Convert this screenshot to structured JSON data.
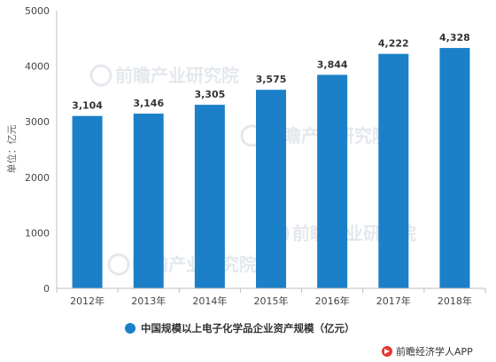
{
  "chart_data": {
    "type": "bar",
    "categories": [
      "2012年",
      "2013年",
      "2014年",
      "2015年",
      "2016年",
      "2017年",
      "2018年"
    ],
    "values": [
      3104,
      3146,
      3305,
      3575,
      3844,
      4222,
      4328
    ],
    "value_labels": [
      "3,104",
      "3,146",
      "3,305",
      "3,575",
      "3,844",
      "4,222",
      "4,328"
    ],
    "title": "",
    "xlabel": "",
    "ylabel": "单位：亿元",
    "ylim": [
      0,
      5000
    ],
    "yticks": [
      0,
      1000,
      2000,
      3000,
      4000,
      5000
    ],
    "grid": false,
    "legend": {
      "position": "bottom",
      "entries": [
        "中国规模以上电子化学品企业资产规模（亿元）"
      ]
    },
    "series": [
      {
        "name": "中国规模以上电子化学品企业资产规模（亿元）",
        "values": [
          3104,
          3146,
          3305,
          3575,
          3844,
          4222,
          4328
        ]
      }
    ]
  },
  "colors": {
    "bar": "#1b80c8",
    "axis": "#bfbfbf"
  },
  "watermark": {
    "text": "前瞻产业研究院"
  },
  "source": {
    "icon": "qianzhan-logo-icon",
    "text": "前瞻经济学人APP"
  }
}
